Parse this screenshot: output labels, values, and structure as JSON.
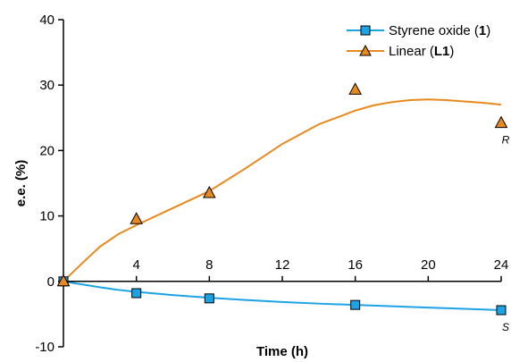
{
  "chart_data": {
    "type": "line",
    "xlabel": "Time (h)",
    "ylabel": "e.e. (%)",
    "xlim": [
      0,
      24
    ],
    "ylim": [
      -10,
      40
    ],
    "xticks": [
      4,
      8,
      12,
      16,
      20,
      24
    ],
    "yticks": [
      -10,
      0,
      10,
      20,
      30,
      40
    ],
    "grid": false,
    "legend_position": "top-right",
    "colors": {
      "series1": "#1ba3e4",
      "series2": "#e8891d"
    },
    "series": [
      {
        "legend_prefix": "Styrene oxide (",
        "legend_bold": "1",
        "legend_suffix": ")",
        "marker": "square",
        "x": [
          0,
          4,
          8,
          16,
          24
        ],
        "y": [
          0,
          -1.8,
          -2.6,
          -3.6,
          -4.4
        ],
        "fit_x": [
          0,
          1,
          2,
          3,
          4,
          6,
          8,
          10,
          12,
          14,
          16,
          18,
          20,
          22,
          24
        ],
        "fit_y": [
          0,
          -0.45,
          -0.9,
          -1.3,
          -1.6,
          -2.1,
          -2.5,
          -2.85,
          -3.15,
          -3.4,
          -3.6,
          -3.8,
          -4.0,
          -4.2,
          -4.4
        ],
        "end_label": "S"
      },
      {
        "legend_prefix": "Linear (",
        "legend_bold": "L1",
        "legend_suffix": ")",
        "marker": "triangle",
        "x": [
          0,
          4,
          8,
          16,
          24
        ],
        "y": [
          0,
          9.5,
          13.5,
          29.3,
          24.2
        ],
        "fit_x": [
          0,
          1,
          2,
          3,
          4,
          6,
          8,
          10,
          12,
          14,
          16,
          17,
          18,
          19,
          20,
          21,
          22,
          23,
          24
        ],
        "fit_y": [
          0,
          2.7,
          5.3,
          7.2,
          8.6,
          11.2,
          13.8,
          17.3,
          21.0,
          24.0,
          26.1,
          26.9,
          27.4,
          27.7,
          27.8,
          27.7,
          27.5,
          27.3,
          27.0
        ],
        "end_label": "R"
      }
    ]
  }
}
